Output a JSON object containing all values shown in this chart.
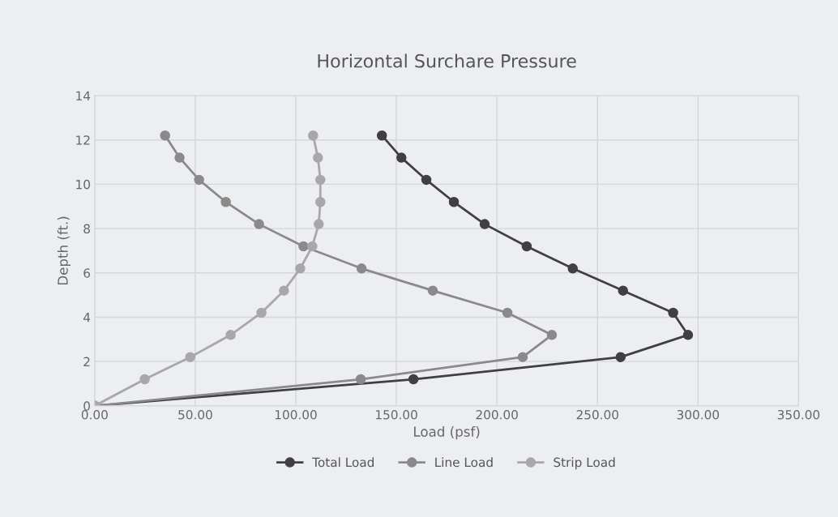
{
  "chart_data": {
    "type": "line",
    "title": "Horizontal Surchare Pressure",
    "xlabel": "Load (psf)",
    "ylabel": "Depth (ft.)",
    "xlim": [
      0,
      350
    ],
    "xticks": [
      {
        "value": 0,
        "label": "0.00"
      },
      {
        "value": 50,
        "label": "50.00"
      },
      {
        "value": 100,
        "label": "100.00"
      },
      {
        "value": 150,
        "label": "150.00"
      },
      {
        "value": 200,
        "label": "200.00"
      },
      {
        "value": 250,
        "label": "250.00"
      },
      {
        "value": 300,
        "label": "300.00"
      },
      {
        "value": 350,
        "label": "350.00"
      }
    ],
    "ylim": [
      0,
      14
    ],
    "yticks": [
      0,
      2,
      4,
      6,
      8,
      10,
      12,
      14
    ],
    "grid": true,
    "legend": "bottom",
    "marker": "circle",
    "line_style": "solid",
    "series": [
      {
        "name": "Total Load",
        "color": "#404040",
        "x": [
          0,
          158.5,
          261.5,
          295,
          287.6,
          262.7,
          237.7,
          214.8,
          193.9,
          178.6,
          164.9,
          152.5,
          142.8
        ],
        "values": [
          0,
          1.2,
          2.2,
          3.2,
          4.2,
          5.2,
          6.2,
          7.2,
          8.2,
          9.2,
          10.2,
          11.2,
          12.2
        ]
      },
      {
        "name": "Line Load",
        "color": "#8a8a8a",
        "x": [
          0,
          132.3,
          212.8,
          227.3,
          205.2,
          168.1,
          132.7,
          103.8,
          81.7,
          65.2,
          51.9,
          42.2,
          35
        ],
        "values": [
          0,
          1.2,
          2.2,
          3.2,
          4.2,
          5.2,
          6.2,
          7.2,
          8.2,
          9.2,
          10.2,
          11.2,
          12.2
        ]
      },
      {
        "name": "Strip Load",
        "color": "#a8a8a8",
        "x": [
          0,
          24.9,
          47.5,
          67.6,
          82.9,
          94.1,
          102.2,
          108.2,
          111.4,
          112.2,
          112.2,
          111,
          108.6
        ],
        "values": [
          0,
          1.2,
          2.2,
          3.2,
          4.2,
          5.2,
          6.2,
          7.2,
          8.2,
          9.2,
          10.2,
          11.2,
          12.2
        ]
      }
    ]
  }
}
